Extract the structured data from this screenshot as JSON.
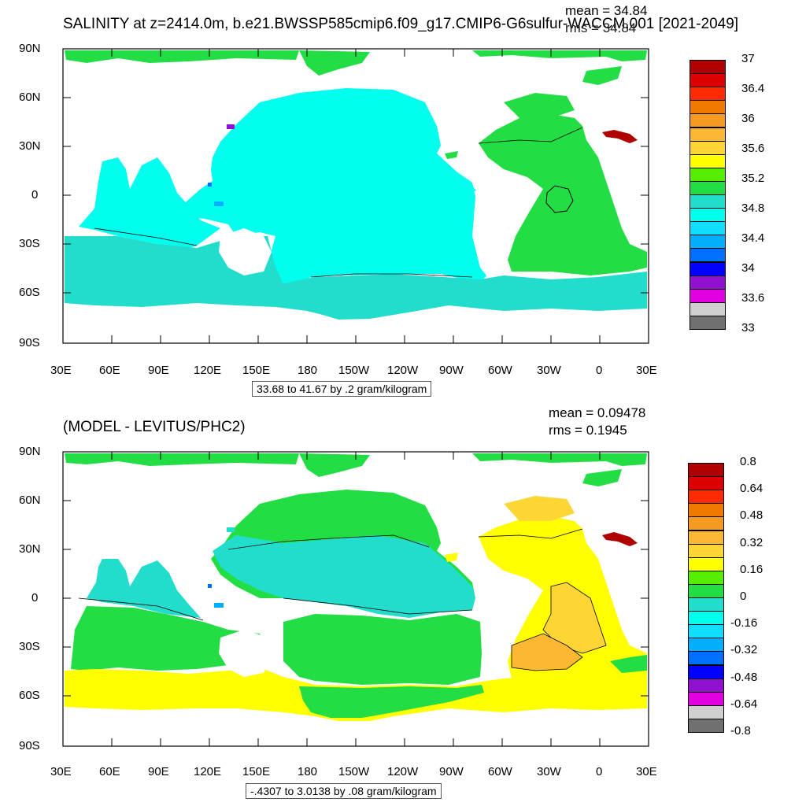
{
  "panels": [
    {
      "title": "SALINITY at z=2414.0m, b.e21.BWSSP585cmip6.f09_g17.CMIP6-G6sulfur-WACCM.001 [2021-2049]",
      "mean": "mean = 34.84",
      "rms": "rms = 34.84",
      "range_label": "33.68 to 41.67 by .2 gram/kilogram",
      "colorbar_labels": [
        "37",
        "36.4",
        "36",
        "35.6",
        "35.2",
        "34.8",
        "34.4",
        "34",
        "33.6",
        "33"
      ],
      "colorbar_colors": [
        "#b00000",
        "#dd0000",
        "#ff2a00",
        "#f07a00",
        "#f59a20",
        "#fbb830",
        "#fdd535",
        "#ffff00",
        "#55ee00",
        "#22dd44",
        "#22ddcc",
        "#00ffee",
        "#11ddff",
        "#00b0ff",
        "#0070ff",
        "#0000ff",
        "#9011d0",
        "#e000e0",
        "#d0d0d0",
        "#707070"
      ]
    },
    {
      "title": "(MODEL - LEVITUS/PHC2)",
      "mean": "mean = 0.09478",
      "rms": "rms = 0.1945",
      "range_label": "-.4307 to 3.0138 by .08 gram/kilogram",
      "colorbar_labels": [
        "0.8",
        "0.64",
        "0.48",
        "0.32",
        "0.16",
        "0",
        "-0.16",
        "-0.32",
        "-0.48",
        "-0.64",
        "-0.8"
      ],
      "colorbar_colors": [
        "#b00000",
        "#dd0000",
        "#ff2a00",
        "#f07a00",
        "#f59a20",
        "#fbb830",
        "#fdd535",
        "#ffff00",
        "#55ee00",
        "#22dd44",
        "#22ddcc",
        "#00ffee",
        "#11ddff",
        "#00b0ff",
        "#0070ff",
        "#0000ff",
        "#9011d0",
        "#e000e0",
        "#d0d0d0",
        "#707070"
      ]
    }
  ],
  "map_axes": {
    "lat_labels": [
      "90N",
      "60N",
      "30N",
      "0",
      "30S",
      "60S",
      "90S"
    ],
    "lon_labels": [
      "30E",
      "60E",
      "90E",
      "120E",
      "150E",
      "180",
      "150W",
      "120W",
      "90W",
      "60W",
      "30W",
      "0",
      "30E"
    ]
  },
  "colors": {
    "pacific_top": "#00ffee",
    "atlantic_top": "#22dd44",
    "southern_top": "#22ddcc",
    "arctic_top": "#22dd44",
    "anomaly_cyan": "#22ddcc",
    "anomaly_green": "#22dd44",
    "anomaly_yellow": "#ffff00",
    "anomaly_orange": "#fdd535",
    "anomaly_orange2": "#fbb830",
    "red": "#b00000"
  }
}
